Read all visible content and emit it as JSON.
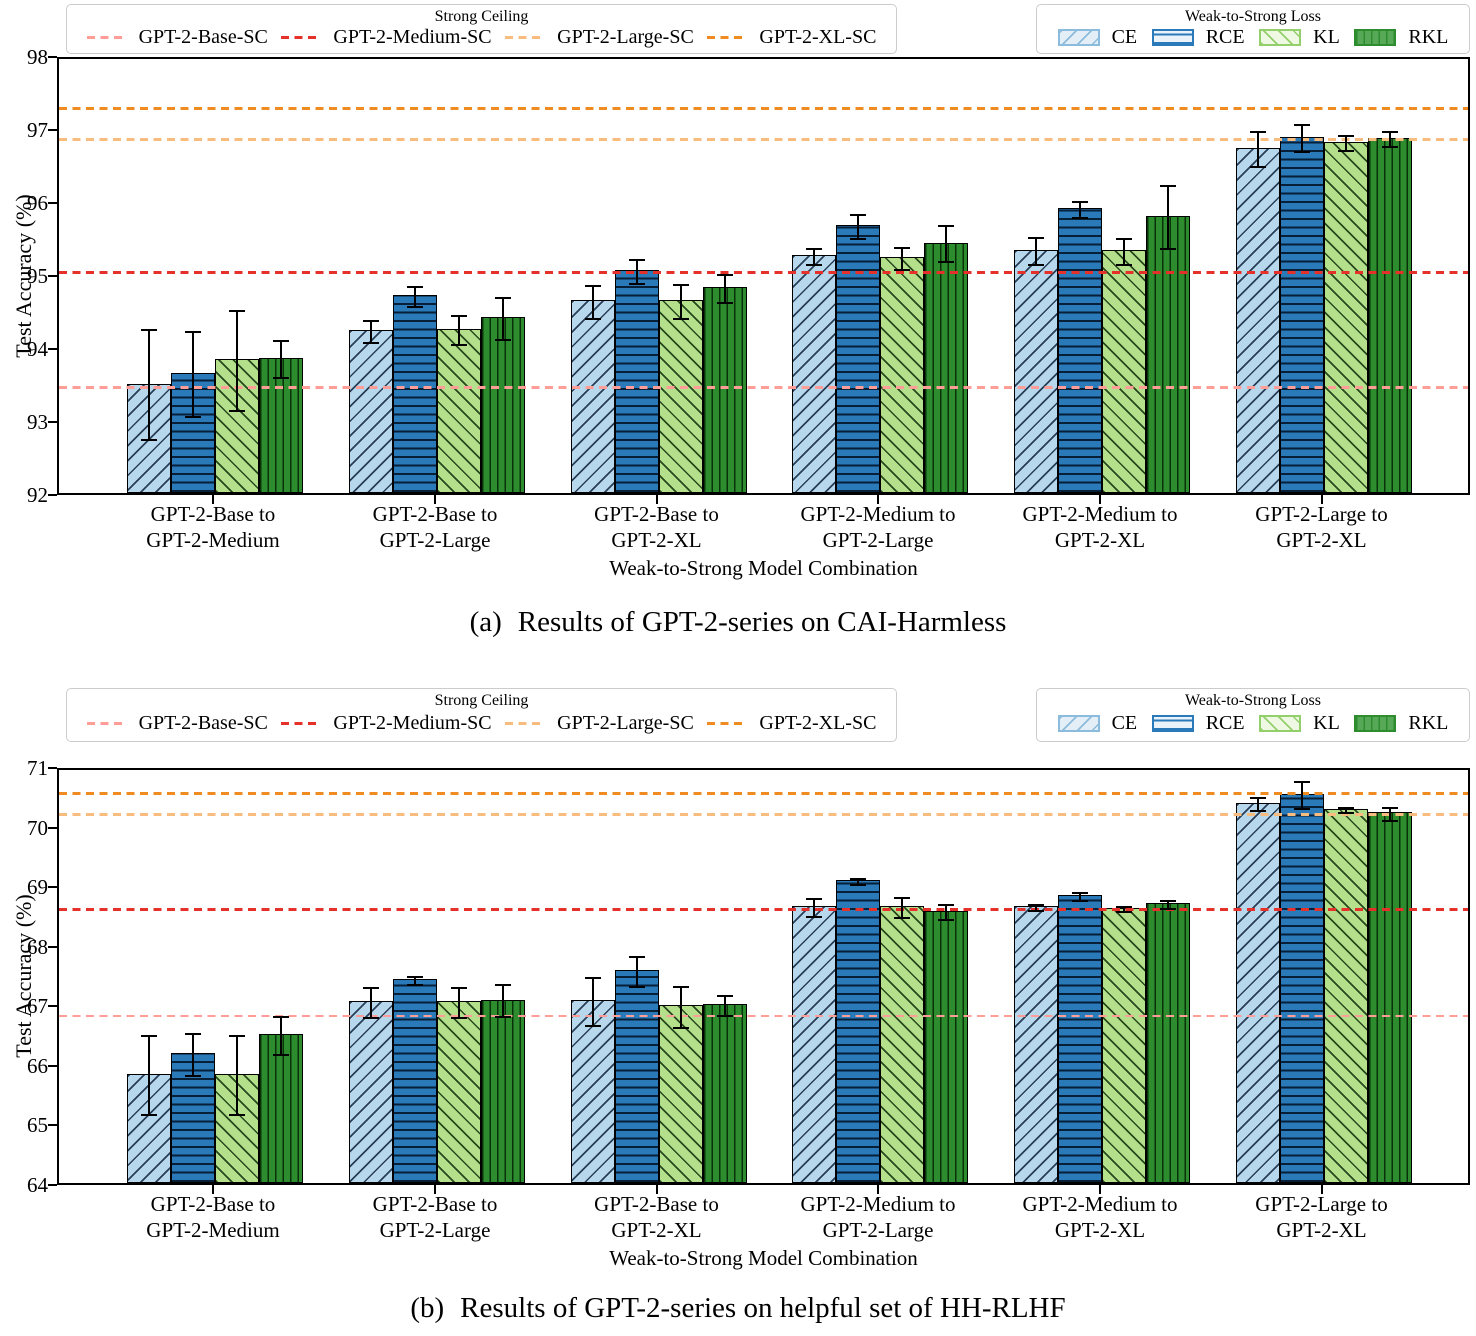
{
  "page": {
    "background": "#ffffff"
  },
  "legend_ceiling": {
    "title": "Strong Ceiling",
    "items": [
      {
        "label": "GPT-2-Base-SC",
        "color": "#ff9d96"
      },
      {
        "label": "GPT-2-Medium-SC",
        "color": "#e6312a"
      },
      {
        "label": "GPT-2-Large-SC",
        "color": "#f8bd7e"
      },
      {
        "label": "GPT-2-XL-SC",
        "color": "#ef8b20"
      }
    ]
  },
  "legend_loss": {
    "title": "Weak-to-Strong Loss",
    "items": [
      {
        "label": "CE",
        "fill": "#b7d7ec",
        "hatch": "/",
        "hatch_color": "rgba(15,35,60,0.85)",
        "edge": "#8cbcdd",
        "swatch_fill": "#e3eef7"
      },
      {
        "label": "RCE",
        "fill": "#2a79b8",
        "hatch": "-",
        "hatch_color": "rgba(3,22,42,0.9)",
        "edge": "#2a79b8",
        "swatch_fill": "#eaf2fa"
      },
      {
        "label": "KL",
        "fill": "#b4e08c",
        "hatch": "\\",
        "hatch_color": "rgba(15,45,10,0.85)",
        "edge": "#93cf6a",
        "swatch_fill": "#eef8e3"
      },
      {
        "label": "RKL",
        "fill": "#2c8c2e",
        "hatch": "|",
        "hatch_color": "rgba(5,40,5,0.9)",
        "edge": "#2c8c2e",
        "swatch_fill": "#57a957"
      }
    ]
  },
  "chart_data": [
    {
      "id": "a",
      "type": "bar",
      "title": "Results of GPT-2-series on CAI-Harmless",
      "ylabel": "Test Accuracy (%)",
      "xlabel": "Weak-to-Strong Model Combination",
      "ylim": [
        92,
        98
      ],
      "yticks": [
        92,
        93,
        94,
        95,
        96,
        97,
        98
      ],
      "grid": false,
      "legend_position": "top",
      "categories": [
        "GPT-2-Base to\nGPT-2-Medium",
        "GPT-2-Base to\nGPT-2-Large",
        "GPT-2-Base to\nGPT-2-XL",
        "GPT-2-Medium to\nGPT-2-Large",
        "GPT-2-Medium to\nGPT-2-XL",
        "GPT-2-Large to\nGPT-2-XL"
      ],
      "series": [
        {
          "name": "CE",
          "values": [
            93.5,
            94.23,
            94.64,
            95.26,
            95.33,
            96.73
          ],
          "errors": [
            0.8,
            0.2,
            0.27,
            0.15,
            0.23,
            0.29
          ]
        },
        {
          "name": "RCE",
          "values": [
            93.65,
            94.71,
            95.05,
            95.67,
            95.9,
            96.88
          ],
          "errors": [
            0.63,
            0.18,
            0.21,
            0.21,
            0.15,
            0.23
          ]
        },
        {
          "name": "KL",
          "values": [
            93.83,
            94.25,
            94.64,
            95.23,
            95.33,
            96.81
          ],
          "errors": [
            0.73,
            0.24,
            0.28,
            0.2,
            0.22,
            0.15
          ]
        },
        {
          "name": "RKL",
          "values": [
            93.85,
            94.41,
            94.82,
            95.43,
            95.8,
            96.87
          ],
          "errors": [
            0.3,
            0.33,
            0.23,
            0.29,
            0.47,
            0.15
          ]
        }
      ],
      "ceilings": [
        {
          "name": "GPT-2-Base-SC",
          "value": 93.5
        },
        {
          "name": "GPT-2-Medium-SC",
          "value": 95.08
        },
        {
          "name": "GPT-2-Large-SC",
          "value": 96.9
        },
        {
          "name": "GPT-2-XL-SC",
          "value": 97.32
        }
      ]
    },
    {
      "id": "b",
      "type": "bar",
      "title": "Results of GPT-2-series on helpful set of HH-RLHF",
      "ylabel": "Test Accuracy (%)",
      "xlabel": "Weak-to-Strong Model Combination",
      "ylim": [
        64,
        71
      ],
      "yticks": [
        64,
        65,
        66,
        67,
        68,
        69,
        70,
        71
      ],
      "grid": false,
      "legend_position": "top",
      "categories": [
        "GPT-2-Base to\nGPT-2-Medium",
        "GPT-2-Base to\nGPT-2-Large",
        "GPT-2-Base to\nGPT-2-XL",
        "GPT-2-Medium to\nGPT-2-Large",
        "GPT-2-Medium to\nGPT-2-XL",
        "GPT-2-Large to\nGPT-2-XL"
      ],
      "series": [
        {
          "name": "CE",
          "values": [
            65.83,
            67.05,
            67.07,
            68.65,
            68.65,
            70.38
          ],
          "errors": [
            0.72,
            0.3,
            0.45,
            0.2,
            0.1,
            0.16
          ]
        },
        {
          "name": "RCE",
          "values": [
            66.18,
            67.42,
            67.57,
            69.08,
            68.83,
            70.53
          ],
          "errors": [
            0.4,
            0.12,
            0.3,
            0.1,
            0.12,
            0.28
          ]
        },
        {
          "name": "KL",
          "values": [
            65.83,
            67.05,
            66.98,
            68.65,
            68.62,
            70.28
          ],
          "errors": [
            0.72,
            0.3,
            0.4,
            0.22,
            0.1,
            0.1
          ]
        },
        {
          "name": "RKL",
          "values": [
            66.5,
            67.08,
            67.0,
            68.57,
            68.7,
            70.22
          ],
          "errors": [
            0.37,
            0.32,
            0.22,
            0.18,
            0.12,
            0.16
          ]
        }
      ],
      "ceilings": [
        {
          "name": "GPT-2-Base-SC",
          "value": 66.87
        },
        {
          "name": "GPT-2-Medium-SC",
          "value": 68.66
        },
        {
          "name": "GPT-2-Large-SC",
          "value": 70.25
        },
        {
          "name": "GPT-2-XL-SC",
          "value": 70.6
        }
      ]
    }
  ],
  "captions": {
    "a_prefix": "(a)",
    "a_text": "Results of GPT-2-series on CAI-Harmless",
    "b_prefix": "(b)",
    "b_text": "Results of GPT-2-series on helpful set of HH-RLHF"
  }
}
